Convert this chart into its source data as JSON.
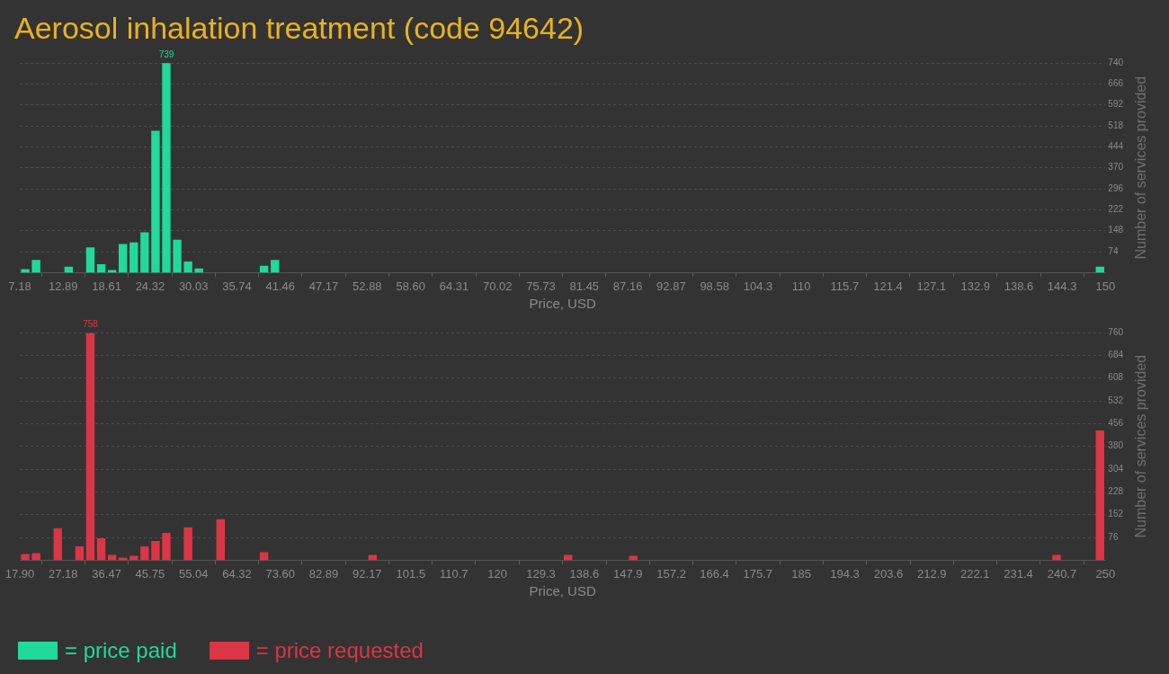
{
  "chart_data": [
    {
      "type": "histogram",
      "title": "Aerosol inhalation treatment (code 94642)",
      "xlabel": "Price, USD",
      "ylabel": "Number of services provided",
      "bins": [
        7.18,
        8.61,
        10.04,
        11.46,
        12.89,
        14.32,
        15.75,
        17.18,
        18.61,
        20.03,
        21.46,
        22.89,
        24.32,
        25.75,
        27.17,
        28.6,
        30.03,
        31.46,
        32.89,
        34.32,
        35.74,
        37.17,
        38.6,
        40.03,
        41.46,
        42.89,
        44.31,
        45.74,
        47.17,
        48.6,
        50.03,
        51.45,
        52.88,
        54.31,
        55.74,
        57.17,
        58.6,
        60.02,
        61.45,
        62.88,
        64.31,
        65.74,
        67.16,
        68.59,
        70.02,
        71.45,
        72.88,
        74.31,
        75.73,
        77.16,
        78.59,
        80.02,
        81.45,
        82.87,
        84.3,
        85.73,
        87.16,
        88.59,
        90.02,
        91.44,
        92.87,
        94.3,
        95.73,
        97.16,
        98.58,
        100.01,
        101.44,
        102.87,
        104.3,
        105.73,
        107.15,
        108.58,
        110.01,
        111.44,
        112.87,
        114.29,
        115.72,
        117.15,
        118.58,
        120.01,
        121.44,
        122.86,
        124.29,
        125.72,
        127.15,
        128.58,
        130.01,
        131.43,
        132.86,
        134.29,
        135.72,
        137.15,
        138.57,
        140.0,
        141.43,
        142.86,
        144.29,
        145.72,
        147.14,
        148.57,
        150.0
      ],
      "series": [
        {
          "name": "= price paid",
          "color": "#21d99a",
          "values": [
            12,
            45,
            0,
            0,
            21,
            0,
            89,
            30,
            9,
            101,
            107,
            142,
            501,
            739,
            116,
            39,
            15,
            0,
            0,
            0,
            0,
            0,
            24,
            45,
            0,
            0,
            0,
            0,
            0,
            0,
            0,
            0,
            0,
            0,
            0,
            0,
            0,
            0,
            0,
            0,
            0,
            0,
            0,
            0,
            0,
            0,
            0,
            0,
            0,
            0,
            0,
            0,
            0,
            0,
            0,
            0,
            0,
            0,
            0,
            0,
            0,
            0,
            0,
            0,
            0,
            0,
            0,
            0,
            0,
            0,
            0,
            0,
            0,
            0,
            0,
            0,
            0,
            0,
            0,
            0,
            0,
            0,
            0,
            0,
            0,
            0,
            0,
            0,
            0,
            0,
            0,
            0,
            0,
            0,
            0,
            0,
            0,
            0,
            0,
            21
          ],
          "value_labels": [
            null,
            null,
            null,
            null,
            null,
            null,
            null,
            null,
            null,
            null,
            null,
            null,
            null,
            "739",
            null,
            null,
            null,
            null,
            null,
            null,
            null,
            null,
            null,
            null,
            null,
            null,
            null,
            null,
            null,
            null,
            null,
            null,
            null,
            null,
            null,
            null,
            null,
            null,
            null,
            null,
            null,
            null,
            null,
            null,
            null,
            null,
            null,
            null,
            null,
            null,
            null,
            null,
            null,
            null,
            null,
            null,
            null,
            null,
            null,
            null,
            null,
            null,
            null,
            null,
            null,
            null,
            null,
            null,
            null,
            null,
            null,
            null,
            null,
            null,
            null,
            null,
            null,
            null,
            null,
            null,
            null,
            null,
            null,
            null,
            null,
            null,
            null,
            null,
            null,
            null,
            null,
            null,
            null,
            null,
            null,
            null,
            null,
            null,
            null,
            null
          ]
        }
      ],
      "xlim": [
        7.18,
        150
      ],
      "xticks": [
        7.18,
        12.89,
        18.61,
        24.32,
        30.03,
        35.74,
        41.46,
        47.17,
        52.88,
        {
          "value": 58.6,
          "label": "58.60"
        },
        64.31,
        70.02,
        75.73,
        81.45,
        87.16,
        92.87,
        98.58,
        104.3,
        110,
        115.7,
        121.4,
        127.1,
        132.9,
        138.6,
        144.3,
        150
      ],
      "ylim": [
        0,
        740
      ],
      "yticks": [
        74,
        148,
        222,
        296,
        370,
        444,
        518,
        592,
        666,
        740
      ],
      "grid": "y",
      "legend": "bottom left"
    },
    {
      "type": "histogram",
      "xlabel": "Price, USD",
      "ylabel": "Number of services provided",
      "bins": [
        17.9,
        20.22,
        22.54,
        24.86,
        27.18,
        29.51,
        31.83,
        34.15,
        36.47,
        38.79,
        41.11,
        43.43,
        45.75,
        48.07,
        50.39,
        52.72,
        55.04,
        57.36,
        59.68,
        62.0,
        64.32,
        66.64,
        68.96,
        71.28,
        73.6,
        75.93,
        78.25,
        80.57,
        82.89,
        85.21,
        87.53,
        89.85,
        92.17,
        94.49,
        96.81,
        99.14,
        101.46,
        103.78,
        106.1,
        108.42,
        110.74,
        113.06,
        115.38,
        117.7,
        120.02,
        122.35,
        124.67,
        126.99,
        129.31,
        131.63,
        133.95,
        136.27,
        138.59,
        140.91,
        143.23,
        145.56,
        147.88,
        150.2,
        152.52,
        154.84,
        157.16,
        159.48,
        161.8,
        164.12,
        166.44,
        168.77,
        171.09,
        173.41,
        175.73,
        178.05,
        180.37,
        182.69,
        185.01,
        187.33,
        189.65,
        191.98,
        194.3,
        196.62,
        198.94,
        201.26,
        203.58,
        205.9,
        208.22,
        210.54,
        212.86,
        215.19,
        217.51,
        219.83,
        222.15,
        224.47,
        226.79,
        229.11,
        231.43,
        233.75,
        236.07,
        238.4,
        240.72,
        243.04,
        245.36,
        247.68,
        250.0
      ],
      "series": [
        {
          "name": "= price requested",
          "color": "#dc3545",
          "values": [
            21,
            24,
            0,
            107,
            0,
            46,
            758,
            73,
            18,
            9,
            15,
            46,
            64,
            91,
            0,
            110,
            0,
            0,
            137,
            0,
            0,
            0,
            27,
            0,
            0,
            0,
            0,
            0,
            0,
            0,
            0,
            0,
            18,
            0,
            0,
            0,
            0,
            0,
            0,
            0,
            0,
            0,
            0,
            0,
            0,
            0,
            0,
            0,
            0,
            0,
            18,
            0,
            0,
            0,
            0,
            0,
            15,
            0,
            0,
            0,
            0,
            0,
            0,
            0,
            0,
            0,
            0,
            0,
            0,
            0,
            0,
            0,
            0,
            0,
            0,
            0,
            0,
            0,
            0,
            0,
            0,
            0,
            0,
            0,
            0,
            0,
            0,
            0,
            0,
            0,
            0,
            0,
            0,
            0,
            0,
            18,
            0,
            0,
            0,
            433
          ],
          "value_labels": [
            null,
            null,
            null,
            null,
            null,
            null,
            "758",
            null,
            null,
            null,
            null,
            null,
            null,
            null,
            null,
            null,
            null,
            null,
            null,
            null,
            null,
            null,
            null,
            null,
            null,
            null,
            null,
            null,
            null,
            null,
            null,
            null,
            null,
            null,
            null,
            null,
            null,
            null,
            null,
            null,
            null,
            null,
            null,
            null,
            null,
            null,
            null,
            null,
            null,
            null,
            null,
            null,
            null,
            null,
            null,
            null,
            null,
            null,
            null,
            null,
            null,
            null,
            null,
            null,
            null,
            null,
            null,
            null,
            null,
            null,
            null,
            null,
            null,
            null,
            null,
            null,
            null,
            null,
            null,
            null,
            null,
            null,
            null,
            null,
            null,
            null,
            null,
            null,
            null,
            null,
            null,
            null,
            null,
            null,
            null,
            null,
            null,
            null,
            null,
            null
          ]
        }
      ],
      "xlim": [
        17.9,
        250
      ],
      "xticks": [
        {
          "value": 17.9,
          "label": "17.90"
        },
        27.18,
        36.47,
        45.75,
        55.04,
        64.32,
        {
          "value": 73.6,
          "label": "73.60"
        },
        82.89,
        92.17,
        101.5,
        110.7,
        120,
        129.3,
        138.6,
        147.9,
        157.2,
        166.4,
        175.7,
        185,
        194.3,
        203.6,
        212.9,
        222.1,
        231.4,
        240.7,
        250
      ],
      "ylim": [
        0,
        760
      ],
      "yticks": [
        76,
        152,
        228,
        304,
        380,
        456,
        532,
        608,
        684,
        760
      ],
      "grid": "y",
      "legend": "bottom left"
    }
  ]
}
